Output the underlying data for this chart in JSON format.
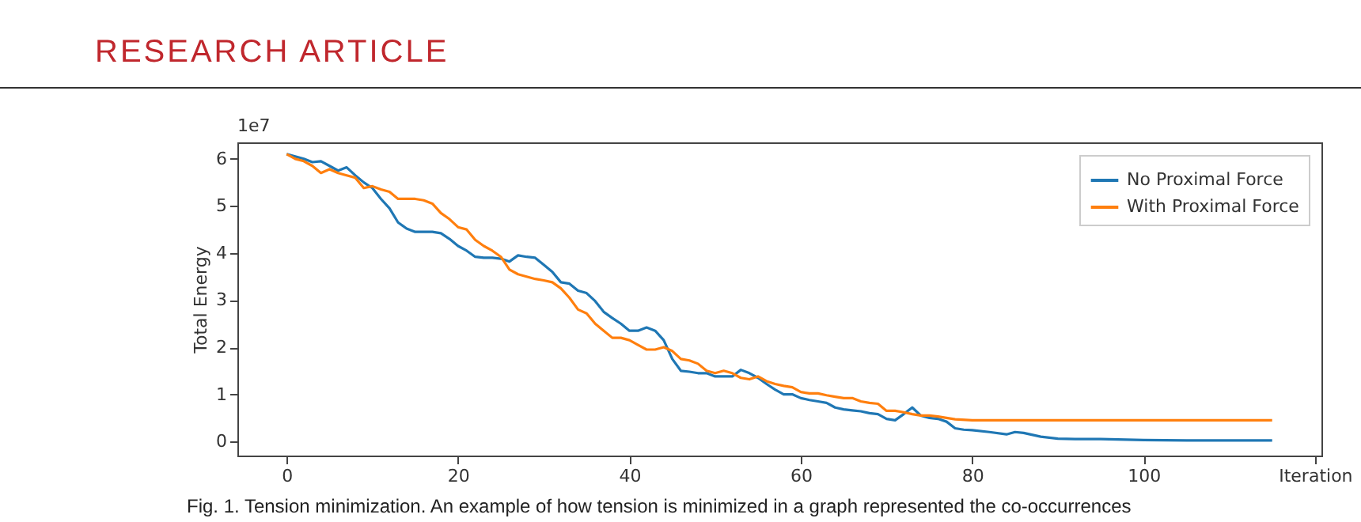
{
  "chart_data": {
    "type": "line",
    "ylabel": "Total Energy",
    "annotations": [
      "RESEARCH ARTICLE",
      "1e7",
      "Fig. 1. Tension minimization. An example of how tension is minimized in a graph represented the co-occurrences"
    ],
    "series": [
      {
        "name": "No Proximal Force",
        "color": "#1f77b4",
        "x": [
          0,
          1,
          2,
          3,
          4,
          5,
          6,
          7,
          8,
          9,
          10,
          11,
          12,
          13,
          14,
          15,
          16,
          17,
          18,
          19,
          20,
          21,
          22,
          23,
          24,
          25,
          26,
          27,
          28,
          29,
          30,
          31,
          32,
          33,
          34,
          35,
          36,
          37,
          38,
          39,
          40,
          41,
          42,
          43,
          44,
          45,
          46,
          47,
          48,
          49,
          50,
          51,
          52,
          53,
          54,
          55,
          56,
          57,
          58,
          59,
          60,
          61,
          62,
          63,
          64,
          65,
          66,
          67,
          68,
          69,
          70,
          71,
          72,
          73,
          74,
          75,
          76,
          77,
          78,
          79,
          80,
          82,
          84,
          85,
          86,
          88,
          90,
          92,
          95,
          100,
          105,
          115
        ],
        "values": [
          6.1,
          6.05,
          6.0,
          5.93,
          5.95,
          5.85,
          5.75,
          5.82,
          5.65,
          5.5,
          5.38,
          5.15,
          4.95,
          4.65,
          4.52,
          4.45,
          4.45,
          4.45,
          4.42,
          4.3,
          4.15,
          4.05,
          3.92,
          3.9,
          3.9,
          3.88,
          3.82,
          3.95,
          3.92,
          3.9,
          3.75,
          3.6,
          3.38,
          3.35,
          3.2,
          3.15,
          2.98,
          2.75,
          2.62,
          2.5,
          2.35,
          2.35,
          2.42,
          2.35,
          2.15,
          1.75,
          1.5,
          1.48,
          1.45,
          1.45,
          1.38,
          1.38,
          1.38,
          1.52,
          1.45,
          1.35,
          1.22,
          1.1,
          1.0,
          1.0,
          0.92,
          0.88,
          0.85,
          0.82,
          0.72,
          0.68,
          0.66,
          0.64,
          0.6,
          0.58,
          0.48,
          0.45,
          0.58,
          0.72,
          0.55,
          0.5,
          0.48,
          0.42,
          0.28,
          0.25,
          0.24,
          0.2,
          0.15,
          0.2,
          0.18,
          0.1,
          0.06,
          0.05,
          0.05,
          0.03,
          0.02,
          0.02
        ]
      },
      {
        "name": "With Proximal Force",
        "color": "#ff7f0e",
        "x": [
          0,
          1,
          2,
          3,
          4,
          5,
          6,
          7,
          8,
          9,
          10,
          11,
          12,
          13,
          14,
          15,
          16,
          17,
          18,
          19,
          20,
          21,
          22,
          23,
          24,
          25,
          26,
          27,
          28,
          29,
          30,
          31,
          32,
          33,
          34,
          35,
          36,
          37,
          38,
          39,
          40,
          41,
          42,
          43,
          44,
          45,
          46,
          47,
          48,
          49,
          50,
          51,
          52,
          53,
          54,
          55,
          56,
          57,
          58,
          59,
          60,
          61,
          62,
          63,
          64,
          65,
          66,
          67,
          68,
          69,
          70,
          71,
          72,
          73,
          74,
          75,
          76,
          77,
          78,
          80,
          115
        ],
        "values": [
          6.1,
          6.0,
          5.95,
          5.85,
          5.7,
          5.78,
          5.7,
          5.65,
          5.6,
          5.38,
          5.42,
          5.35,
          5.3,
          5.15,
          5.15,
          5.15,
          5.12,
          5.05,
          4.85,
          4.72,
          4.55,
          4.5,
          4.28,
          4.15,
          4.05,
          3.92,
          3.65,
          3.55,
          3.5,
          3.45,
          3.42,
          3.38,
          3.25,
          3.05,
          2.8,
          2.72,
          2.5,
          2.35,
          2.2,
          2.2,
          2.15,
          2.05,
          1.95,
          1.95,
          2.0,
          1.92,
          1.75,
          1.72,
          1.65,
          1.5,
          1.45,
          1.5,
          1.45,
          1.35,
          1.32,
          1.38,
          1.28,
          1.22,
          1.18,
          1.15,
          1.05,
          1.02,
          1.02,
          0.98,
          0.95,
          0.92,
          0.92,
          0.85,
          0.82,
          0.8,
          0.65,
          0.65,
          0.62,
          0.58,
          0.55,
          0.55,
          0.53,
          0.5,
          0.47,
          0.45,
          0.45
        ]
      }
    ],
    "xlim": [
      -5.75,
      120.75
    ],
    "xticks": [
      0,
      20,
      40,
      60,
      80,
      100,
      {
        "value": 120,
        "label": "Iteration"
      }
    ],
    "ylim": [
      -0.3,
      6.35
    ],
    "yticks": [
      0,
      1,
      2,
      3,
      4,
      5,
      6
    ],
    "grid": false,
    "legend": "top right",
    "marker": "none",
    "line_style": "solid"
  }
}
